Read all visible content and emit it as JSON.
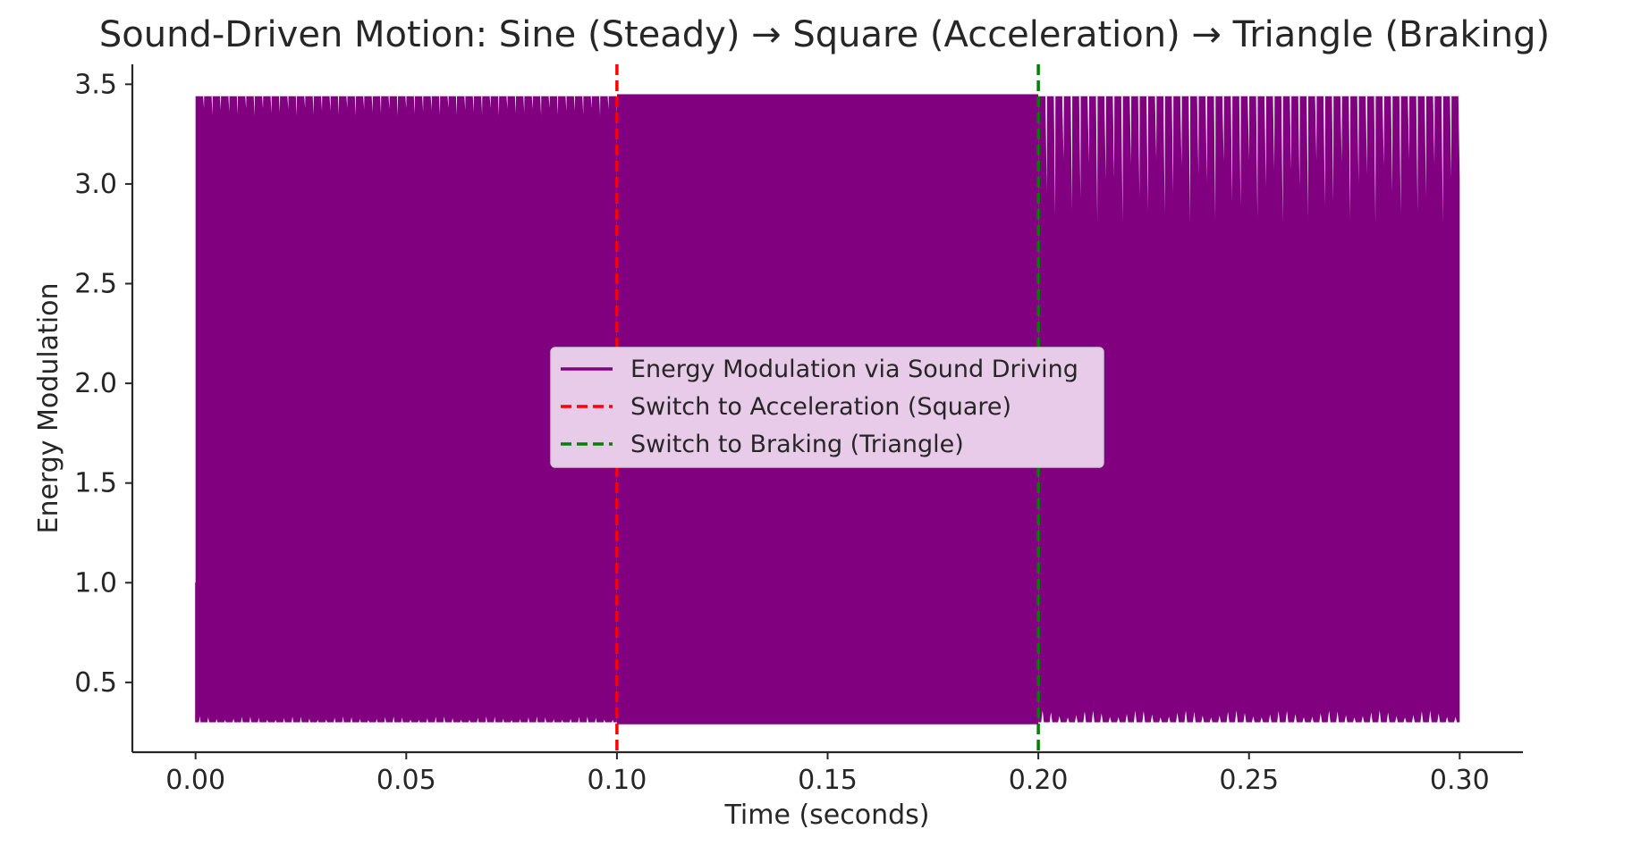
{
  "chart_data": {
    "type": "line",
    "title": "Sound-Driven Motion: Sine (Steady) → Square (Acceleration) → Triangle (Braking)",
    "xlabel": "Time (seconds)",
    "ylabel": "Energy Modulation",
    "xlim": [
      -0.015,
      0.315
    ],
    "ylim": [
      0.15,
      3.6
    ],
    "xticks": [
      0.0,
      0.05,
      0.1,
      0.15,
      0.2,
      0.25,
      0.3
    ],
    "xtick_labels": [
      "0.00",
      "0.05",
      "0.10",
      "0.15",
      "0.20",
      "0.25",
      "0.30"
    ],
    "yticks": [
      0.5,
      1.0,
      1.5,
      2.0,
      2.5,
      3.0,
      3.5
    ],
    "ytick_labels": [
      "0.5",
      "1.0",
      "1.5",
      "2.0",
      "2.5",
      "3.0",
      "3.5"
    ],
    "grid": false,
    "legend_position": "center",
    "series": [
      {
        "name": "Energy Modulation via Sound Driving",
        "color": "#800080",
        "segments": [
          {
            "label": "Sine (Steady)",
            "x_range": [
              0.0,
              0.1
            ],
            "y_min": 0.3,
            "y_max": 3.44,
            "upper_envelope_min": 3.34,
            "lower_envelope_max": 0.33,
            "start_y": 1.0,
            "cycles": 50
          },
          {
            "label": "Square (Acceleration)",
            "x_range": [
              0.1,
              0.2
            ],
            "y_min": 0.29,
            "y_max": 3.45
          },
          {
            "label": "Triangle (Braking)",
            "x_range": [
              0.2,
              0.3
            ],
            "y_min": 0.3,
            "y_max": 3.44,
            "upper_envelope_min": 2.8,
            "lower_envelope_max": 0.36,
            "cycles": 50
          }
        ]
      }
    ],
    "vlines": [
      {
        "x": 0.1,
        "name": "Switch to Acceleration (Square)",
        "color": "#ff0000",
        "style": "dashed"
      },
      {
        "x": 0.2,
        "name": "Switch to Braking (Triangle)",
        "color": "#008000",
        "style": "dashed"
      }
    ],
    "legend_background": "#e8cbe8"
  }
}
